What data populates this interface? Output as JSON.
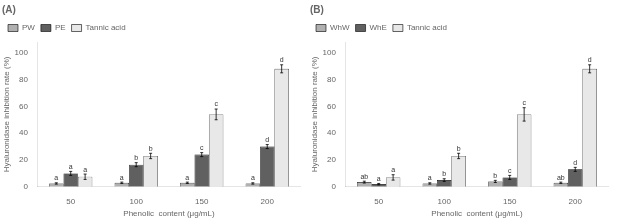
{
  "chart_data": [
    {
      "type": "bar",
      "title": "(A)",
      "xlabel": "Phenolic  content (μg/mL)",
      "ylabel": "Hyaluronidase inhibition rate (%)",
      "categories": [
        "50",
        "100",
        "150",
        "200"
      ],
      "series": [
        {
          "name": "PW",
          "color": "#b0b0b0",
          "values": [
            2.5,
            3.0,
            3.0,
            2.5
          ],
          "errors": [
            0.5,
            0.5,
            0.5,
            0.5
          ],
          "letters": [
            "a",
            "a",
            "a",
            "a"
          ]
        },
        {
          "name": "PE",
          "color": "#606060",
          "values": [
            10.0,
            16.5,
            24.0,
            30.0
          ],
          "errors": [
            1.5,
            1.5,
            1.5,
            1.5
          ],
          "letters": [
            "a",
            "b",
            "c",
            "d"
          ]
        },
        {
          "name": "Tannic acid",
          "color": "#e8e8e8",
          "values": [
            7.5,
            23.0,
            54.0,
            88.0
          ],
          "errors": [
            2.0,
            2.0,
            4.0,
            3.0
          ],
          "letters": [
            "a",
            "b",
            "c",
            "d"
          ]
        }
      ],
      "ylim": [
        0,
        108
      ],
      "yticks": [
        0,
        20,
        40,
        60,
        80,
        100
      ],
      "grid": false,
      "legend": "upper left"
    },
    {
      "type": "bar",
      "title": "(B)",
      "xlabel": "Phenolic  content (μg/mL)",
      "ylabel": "Hyaluronidase inhibition rate (%)",
      "categories": [
        "50",
        "100",
        "150",
        "200"
      ],
      "series": [
        {
          "name": "WhW",
          "color": "#b0b0b0",
          "values": [
            3.5,
            2.5,
            4.0,
            3.0
          ],
          "errors": [
            0.7,
            0.5,
            0.8,
            0.5
          ],
          "letters": [
            "ab",
            "a",
            "b",
            "ab"
          ]
        },
        {
          "name": "WhE",
          "color": "#606060",
          "values": [
            2.0,
            5.0,
            7.0,
            13.0
          ],
          "errors": [
            0.5,
            1.0,
            1.5,
            1.5
          ],
          "letters": [
            "a",
            "b",
            "c",
            "d"
          ]
        },
        {
          "name": "Tannic acid",
          "color": "#e8e8e8",
          "values": [
            7.0,
            23.0,
            54.0,
            88.0
          ],
          "errors": [
            2.0,
            2.0,
            5.0,
            3.0
          ],
          "letters": [
            "a",
            "b",
            "c",
            "d"
          ]
        }
      ],
      "ylim": [
        0,
        108
      ],
      "yticks": [
        0,
        20,
        40,
        60,
        80,
        100
      ],
      "grid": false,
      "legend": "upper left"
    }
  ]
}
